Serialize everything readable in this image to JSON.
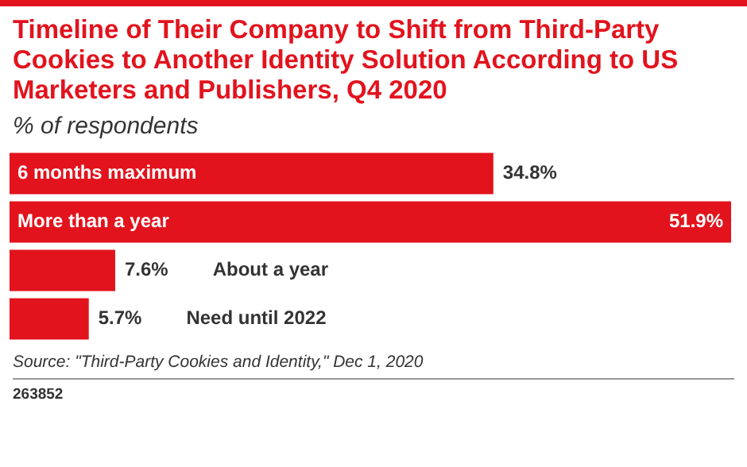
{
  "chart_data": {
    "type": "bar",
    "orientation": "horizontal",
    "title": "Timeline of Their Company to Shift from Third-Party Cookies to Another Identity Solution According to US Marketers and Publishers, Q4 2020",
    "subtitle": "% of respondents",
    "categories": [
      "6 months maximum",
      "More than a year",
      "About a year",
      "Need until 2022"
    ],
    "values": [
      34.8,
      51.9,
      7.6,
      5.7
    ],
    "value_labels": [
      "34.8%",
      "51.9%",
      "7.6%",
      "5.7%"
    ],
    "color": "#e2131d",
    "annotations": [
      "Source: \"Third-Party Cookies and Identity,\" Dec 1, 2020",
      "263852"
    ]
  }
}
